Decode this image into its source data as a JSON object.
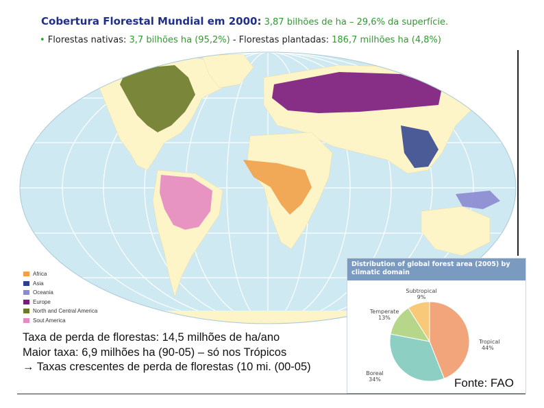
{
  "header": {
    "title_bold": "Cobertura Florestal Mundial em 2000:",
    "title_rest": " 3,87 bilhões de ha – 29,6% da superfície.",
    "bullet": "•",
    "native_label": " Florestas nativas: ",
    "native_value": "3,7 bilhões ha (95,2%)",
    "sep": " - ",
    "planted_label": "Florestas plantadas: ",
    "planted_value": "186,7 milhões ha (4,8%)"
  },
  "legend": [
    {
      "label": "Africa",
      "color": "#f0a04a"
    },
    {
      "label": "Asia",
      "color": "#2a3f8f"
    },
    {
      "label": "Oceania",
      "color": "#8a8ad0"
    },
    {
      "label": "Europe",
      "color": "#7a1a80"
    },
    {
      "label": "North and Central America",
      "color": "#6b7a2a"
    },
    {
      "label": "Sout America",
      "color": "#e58ac2"
    }
  ],
  "colors": {
    "ocean": "#cfe9f2",
    "land": "#fdf4c8",
    "grid": "#ffffff"
  },
  "body_text": {
    "line1": "Taxa de perda de florestas: 14,5 milhões de ha/ano",
    "line2": "Maior taxa: 6,9 milhões ha (90-05) –  só nos Trópicos",
    "line3": "→ Taxas crescentes de perda de florestas (10 mi. (00-05)"
  },
  "inset": {
    "title": "Distribution of global forest area (2005) by climatic domain"
  },
  "chart_data": {
    "type": "pie",
    "title": "Distribution of global forest area (2005) by climatic domain",
    "series": [
      {
        "label": "Tropical",
        "value": 44,
        "display": "44%",
        "color": "#f2a57a"
      },
      {
        "label": "Boreal",
        "value": 34,
        "display": "34%",
        "color": "#8ecfc4"
      },
      {
        "label": "Temperate",
        "value": 13,
        "display": "13%",
        "color": "#b6d78a"
      },
      {
        "label": "Subtropical",
        "value": 9,
        "display": "9%",
        "color": "#f7c978"
      }
    ]
  },
  "source": "Fonte: FAO"
}
